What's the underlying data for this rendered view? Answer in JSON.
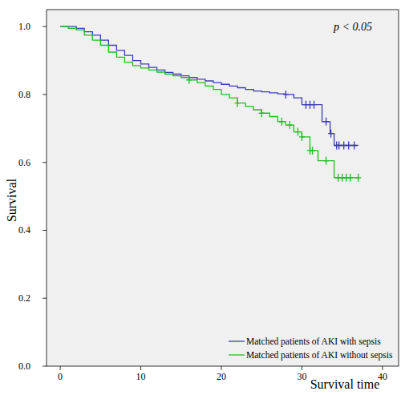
{
  "chart_data": {
    "type": "line",
    "x_label": "Survival time",
    "y_label": "Survival",
    "annotation": "p < 0.05",
    "xlim": [
      -1.7,
      42
    ],
    "ylim": [
      0,
      1.05
    ],
    "xticks": [
      0,
      10,
      20,
      30,
      40
    ],
    "yticks": [
      {
        "value": 0,
        "label": "0.0"
      },
      0.2,
      0.4,
      0.6,
      0.8,
      {
        "value": 1,
        "label": "1.0"
      }
    ],
    "legend": "lower right",
    "line_style": "step",
    "series": [
      {
        "name": "Matched patients of AKI with sepsis",
        "color": "#3c3cb4",
        "x": [
          0,
          1,
          2,
          3,
          4,
          5,
          6,
          7,
          8,
          9,
          10,
          11,
          12,
          13,
          14,
          15,
          16,
          17,
          18,
          19,
          20,
          21,
          22,
          23,
          24,
          25,
          26,
          27,
          28,
          29,
          30,
          32.5,
          33.5,
          34,
          37
        ],
        "values": [
          1.0,
          1.0,
          0.995,
          0.985,
          0.975,
          0.96,
          0.945,
          0.93,
          0.915,
          0.9,
          0.89,
          0.88,
          0.872,
          0.865,
          0.86,
          0.855,
          0.85,
          0.845,
          0.84,
          0.835,
          0.83,
          0.825,
          0.82,
          0.815,
          0.81,
          0.808,
          0.805,
          0.802,
          0.8,
          0.79,
          0.77,
          0.72,
          0.685,
          0.65,
          0.65
        ],
        "censored": {
          "x": [
            28,
            30.5,
            31,
            31.5,
            33,
            33.6,
            34.3,
            34.6,
            35.2,
            35.8,
            36.5
          ],
          "values": [
            0.8,
            0.77,
            0.77,
            0.77,
            0.72,
            0.685,
            0.65,
            0.65,
            0.65,
            0.65,
            0.65
          ]
        }
      },
      {
        "name": "Matched patients of AKI without sepsis",
        "color": "#22bb22",
        "x": [
          0,
          1,
          2,
          3,
          4,
          5,
          6,
          7,
          8,
          9,
          10,
          11,
          12,
          13,
          14,
          15,
          16,
          17,
          18,
          19,
          20,
          21,
          22,
          23,
          24,
          25,
          26,
          27,
          28,
          29,
          30,
          31,
          32,
          34,
          37
        ],
        "values": [
          1.0,
          0.995,
          0.99,
          0.975,
          0.96,
          0.945,
          0.925,
          0.91,
          0.895,
          0.885,
          0.878,
          0.872,
          0.866,
          0.86,
          0.855,
          0.85,
          0.843,
          0.835,
          0.825,
          0.815,
          0.8,
          0.79,
          0.775,
          0.765,
          0.755,
          0.745,
          0.735,
          0.72,
          0.71,
          0.69,
          0.675,
          0.635,
          0.605,
          0.555,
          0.555
        ],
        "censored": {
          "x": [
            16,
            22,
            25,
            27.5,
            28.5,
            29.5,
            30,
            31,
            31.3,
            33,
            34.5,
            35,
            35.5,
            36,
            37
          ],
          "values": [
            0.843,
            0.775,
            0.745,
            0.72,
            0.71,
            0.69,
            0.675,
            0.635,
            0.635,
            0.605,
            0.555,
            0.555,
            0.555,
            0.555,
            0.555
          ]
        }
      }
    ]
  }
}
